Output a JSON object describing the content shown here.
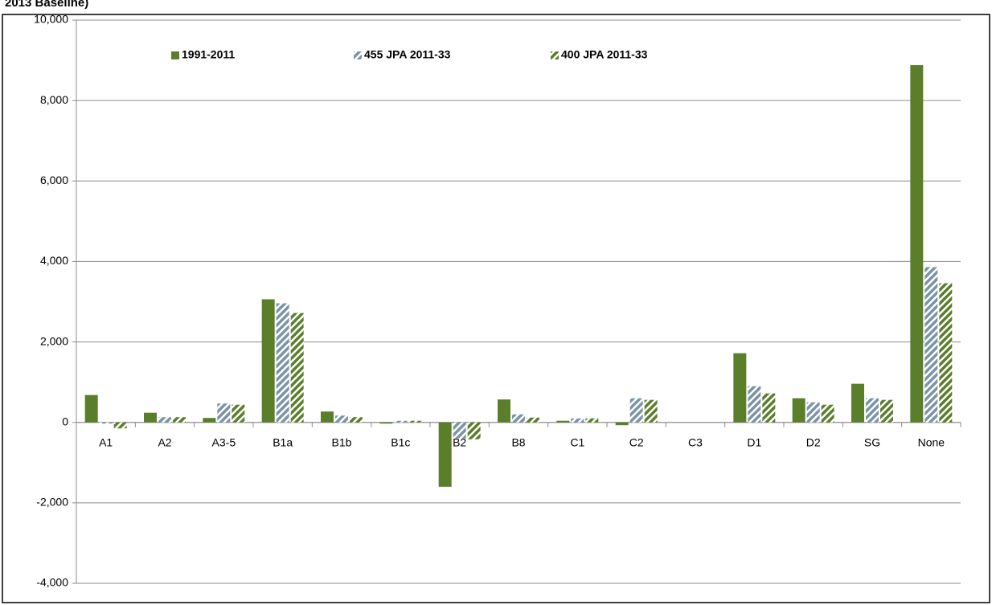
{
  "chart_data": {
    "type": "bar",
    "title": "2013 Baseline)",
    "categories": [
      "A1",
      "A2",
      "A3-5",
      "B1a",
      "B1b",
      "B1c",
      "B2",
      "B8",
      "C1",
      "C2",
      "C3",
      "D1",
      "D2",
      "SG",
      "None"
    ],
    "series": [
      {
        "name": "1991-2011",
        "color": "#5b7e2b",
        "pattern": "solid",
        "values": [
          680,
          240,
          110,
          3060,
          270,
          -30,
          -1600,
          570,
          40,
          -70,
          0,
          1720,
          600,
          960,
          8880
        ]
      },
      {
        "name": "455 JPA 2011-33",
        "color": "#7a93a6",
        "pattern": "hatch",
        "values": [
          -30,
          130,
          470,
          2960,
          170,
          40,
          -400,
          200,
          100,
          600,
          0,
          900,
          500,
          600,
          3860
        ]
      },
      {
        "name": "400 JPA 2011-33",
        "color": "#5b7e2b",
        "pattern": "hatch",
        "values": [
          -150,
          130,
          440,
          2720,
          130,
          40,
          -420,
          120,
          100,
          560,
          0,
          720,
          440,
          560,
          3460
        ]
      }
    ],
    "ylim": [
      -4000,
      10000
    ],
    "yticks": [
      {
        "value": -4000,
        "label": "-4,000"
      },
      {
        "value": -2000,
        "label": "-2,000"
      },
      0,
      {
        "value": 2000,
        "label": "2,000"
      },
      {
        "value": 4000,
        "label": "4,000"
      },
      {
        "value": 6000,
        "label": "6,000"
      },
      {
        "value": 8000,
        "label": "8,000"
      },
      {
        "value": 10000,
        "label": "10,000"
      }
    ],
    "grid": true,
    "legend": "top"
  }
}
